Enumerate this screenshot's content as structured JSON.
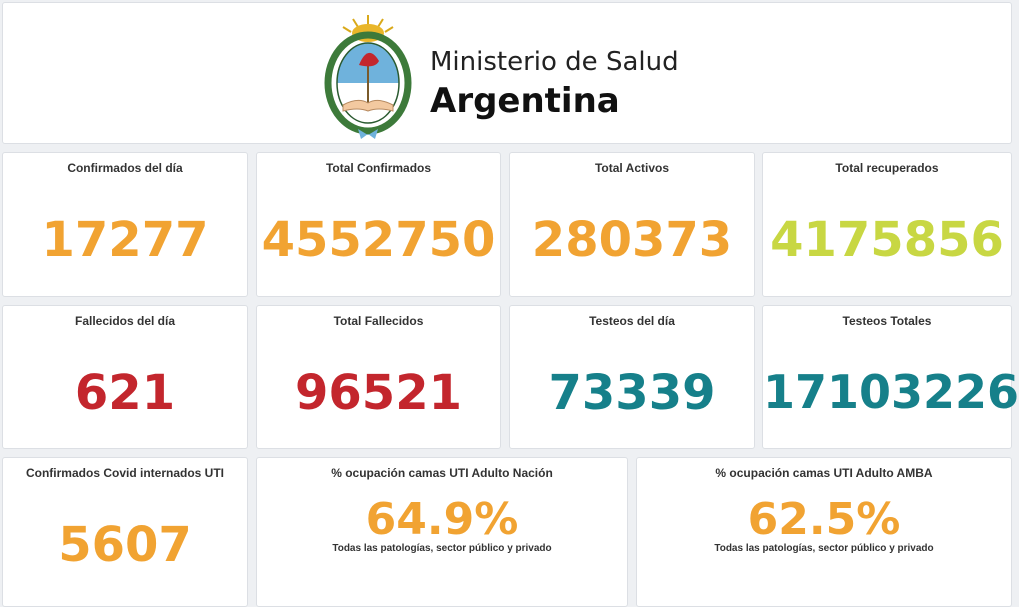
{
  "header": {
    "line1": "Ministerio de Salud",
    "line2": "Argentina",
    "emblem_icon": "argentina-coat-of-arms-icon"
  },
  "colors": {
    "orange": "#f1a332",
    "green": "#c8d743",
    "red": "#c3262d",
    "teal": "#16808a"
  },
  "stats": [
    {
      "label": "Confirmados del día",
      "value": "17277"
    },
    {
      "label": "Total Confirmados",
      "value": "4552750"
    },
    {
      "label": "Total Activos",
      "value": "280373"
    },
    {
      "label": "Total recuperados",
      "value": "4175856"
    },
    {
      "label": "Fallecidos del día",
      "value": "621"
    },
    {
      "label": "Total Fallecidos",
      "value": "96521"
    },
    {
      "label": "Testeos del día",
      "value": "73339"
    },
    {
      "label": "Testeos Totales",
      "value": "17103226"
    },
    {
      "label": "Confirmados Covid internados UTI",
      "value": "5607"
    }
  ],
  "occupancy": [
    {
      "label": "% ocupación camas UTI Adulto Nación",
      "value": "64.9%",
      "note": "Todas las patologías, sector público y privado"
    },
    {
      "label": "% ocupación camas UTI Adulto AMBA",
      "value": "62.5%",
      "note": "Todas las patologías, sector público y privado"
    }
  ]
}
